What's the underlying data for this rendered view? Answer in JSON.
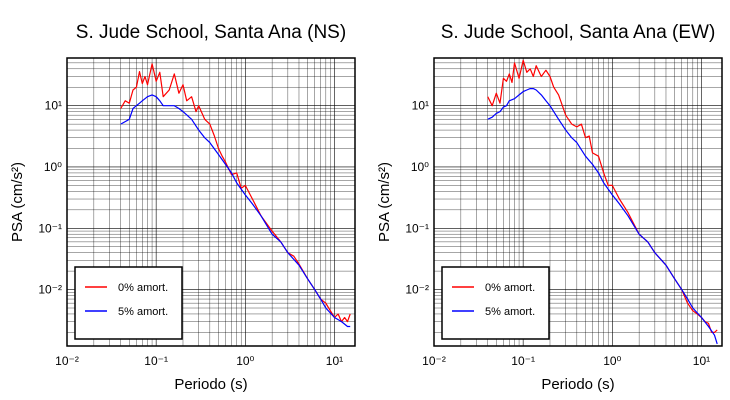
{
  "chart_data": [
    {
      "type": "line",
      "title": "S. Jude School, Santa Ana (NS)",
      "xlabel": "Periodo (s)",
      "ylabel": "PSA (cm/s²)",
      "xscale": "log",
      "yscale": "log",
      "xlim": [
        0.01,
        17
      ],
      "ylim": [
        0.0012,
        60
      ],
      "xticks": [
        "10⁻²",
        "10⁻¹",
        "10⁰",
        "10¹"
      ],
      "yticks": [
        "10⁻²",
        "10⁻¹",
        "10⁰",
        "10¹"
      ],
      "grid": true,
      "legend_position": "bottom-left",
      "series": [
        {
          "name": "0% amort.",
          "color": "#ff0000",
          "x": [
            0.04,
            0.045,
            0.05,
            0.055,
            0.06,
            0.065,
            0.07,
            0.075,
            0.08,
            0.09,
            0.1,
            0.11,
            0.12,
            0.14,
            0.16,
            0.18,
            0.2,
            0.22,
            0.25,
            0.28,
            0.3,
            0.35,
            0.4,
            0.45,
            0.5,
            0.55,
            0.6,
            0.7,
            0.8,
            0.9,
            1,
            1.2,
            1.5,
            2,
            2.5,
            3,
            3.5,
            4,
            5,
            6,
            7,
            8,
            9,
            10,
            11,
            12,
            13,
            14,
            15
          ],
          "y": [
            9,
            12,
            11,
            18,
            20,
            36,
            23,
            30,
            22,
            48,
            25,
            35,
            14,
            18,
            33,
            16,
            22,
            12,
            14,
            8,
            10,
            6,
            5,
            3.2,
            2,
            1.5,
            1.2,
            0.75,
            0.8,
            0.45,
            0.5,
            0.3,
            0.16,
            0.09,
            0.06,
            0.04,
            0.035,
            0.026,
            0.015,
            0.01,
            0.007,
            0.006,
            0.0045,
            0.0035,
            0.004,
            0.003,
            0.0035,
            0.003,
            0.004
          ]
        },
        {
          "name": "5% amort.",
          "color": "#0000ff",
          "x": [
            0.04,
            0.045,
            0.05,
            0.055,
            0.06,
            0.065,
            0.07,
            0.08,
            0.09,
            0.1,
            0.11,
            0.12,
            0.14,
            0.16,
            0.18,
            0.2,
            0.25,
            0.3,
            0.35,
            0.4,
            0.5,
            0.6,
            0.7,
            0.8,
            1,
            1.2,
            1.5,
            2,
            2.5,
            3,
            4,
            5,
            6,
            7,
            8,
            10,
            12,
            14,
            15
          ],
          "y": [
            5,
            5.5,
            6,
            9,
            10,
            11,
            12,
            14,
            15,
            14,
            12,
            10,
            10,
            10,
            9,
            8,
            6,
            4,
            3,
            2.5,
            1.6,
            1.1,
            0.8,
            0.55,
            0.35,
            0.25,
            0.16,
            0.08,
            0.06,
            0.04,
            0.025,
            0.015,
            0.01,
            0.007,
            0.005,
            0.0035,
            0.003,
            0.0025,
            0.0025
          ]
        }
      ]
    },
    {
      "type": "line",
      "title": "S. Jude School, Santa Ana (EW)",
      "xlabel": "Periodo (s)",
      "ylabel": "PSA (cm/s²)",
      "xscale": "log",
      "yscale": "log",
      "xlim": [
        0.01,
        17
      ],
      "ylim": [
        0.0012,
        60
      ],
      "xticks": [
        "10⁻²",
        "10⁻¹",
        "10⁰",
        "10¹"
      ],
      "yticks": [
        "10⁻²",
        "10⁻¹",
        "10⁰",
        "10¹"
      ],
      "grid": true,
      "legend_position": "bottom-left",
      "series": [
        {
          "name": "0% amort.",
          "color": "#ff0000",
          "x": [
            0.04,
            0.045,
            0.05,
            0.055,
            0.06,
            0.065,
            0.07,
            0.075,
            0.08,
            0.09,
            0.1,
            0.11,
            0.12,
            0.13,
            0.14,
            0.16,
            0.18,
            0.2,
            0.22,
            0.25,
            0.3,
            0.35,
            0.4,
            0.45,
            0.5,
            0.55,
            0.6,
            0.7,
            0.8,
            0.9,
            1,
            1.2,
            1.5,
            2,
            2.5,
            3,
            4,
            5,
            6,
            7,
            8,
            9,
            10,
            11,
            12,
            13,
            14,
            15
          ],
          "y": [
            14,
            10,
            16,
            11,
            28,
            25,
            33,
            24,
            50,
            28,
            55,
            35,
            40,
            30,
            45,
            30,
            38,
            30,
            20,
            15,
            7,
            5,
            4.5,
            5,
            3,
            3.2,
            1.7,
            1.5,
            0.8,
            0.5,
            0.5,
            0.3,
            0.18,
            0.08,
            0.06,
            0.04,
            0.025,
            0.015,
            0.01,
            0.006,
            0.0045,
            0.004,
            0.0035,
            0.003,
            0.0028,
            0.002,
            0.002,
            0.0022
          ]
        },
        {
          "name": "5% amort.",
          "color": "#0000ff",
          "x": [
            0.04,
            0.045,
            0.05,
            0.055,
            0.06,
            0.065,
            0.07,
            0.08,
            0.09,
            0.1,
            0.11,
            0.12,
            0.13,
            0.14,
            0.16,
            0.18,
            0.2,
            0.25,
            0.3,
            0.35,
            0.4,
            0.5,
            0.6,
            0.7,
            0.8,
            1,
            1.2,
            1.5,
            2,
            2.5,
            3,
            4,
            5,
            6,
            7,
            8,
            10,
            12,
            14,
            15
          ],
          "y": [
            6,
            6.5,
            7.5,
            8,
            9.5,
            10,
            12,
            13,
            15,
            17,
            18,
            19,
            19,
            18,
            15,
            12,
            10,
            6,
            4,
            3,
            2.5,
            1.5,
            1.1,
            0.8,
            0.55,
            0.35,
            0.25,
            0.16,
            0.08,
            0.06,
            0.04,
            0.025,
            0.015,
            0.01,
            0.007,
            0.005,
            0.0035,
            0.0025,
            0.0018,
            0.0013
          ]
        }
      ]
    }
  ]
}
